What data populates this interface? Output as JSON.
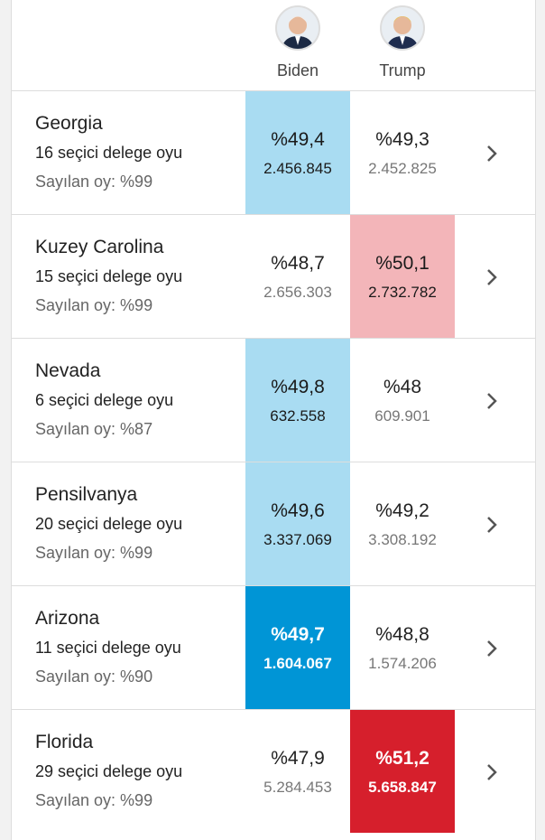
{
  "header": {
    "candidates": [
      "Biden",
      "Trump"
    ]
  },
  "rows": [
    {
      "state": "Georgia",
      "electors": "16 seçici delege oyu",
      "counted": "Sayılan oy: %99",
      "results": [
        {
          "pct": "%49,4",
          "votes": "2.456.845"
        },
        {
          "pct": "%49,3",
          "votes": "2.452.825"
        }
      ],
      "highlight": {
        "candidate": 0,
        "color": "#a9dcf2",
        "text_color": "#1a1a1a"
      }
    },
    {
      "state": "Kuzey Carolina",
      "electors": "15 seçici delege oyu",
      "counted": "Sayılan oy: %99",
      "results": [
        {
          "pct": "%48,7",
          "votes": "2.656.303"
        },
        {
          "pct": "%50,1",
          "votes": "2.732.782"
        }
      ],
      "highlight": {
        "candidate": 1,
        "color": "#f3b5b9",
        "text_color": "#1a1a1a"
      }
    },
    {
      "state": "Nevada",
      "electors": "6 seçici delege oyu",
      "counted": "Sayılan oy: %87",
      "results": [
        {
          "pct": "%49,8",
          "votes": "632.558"
        },
        {
          "pct": "%48",
          "votes": "609.901"
        }
      ],
      "highlight": {
        "candidate": 0,
        "color": "#a9dcf2",
        "text_color": "#1a1a1a"
      }
    },
    {
      "state": "Pensilvanya",
      "electors": "20 seçici delege oyu",
      "counted": "Sayılan oy: %99",
      "results": [
        {
          "pct": "%49,6",
          "votes": "3.337.069"
        },
        {
          "pct": "%49,2",
          "votes": "3.308.192"
        }
      ],
      "highlight": {
        "candidate": 0,
        "color": "#a9dcf2",
        "text_color": "#1a1a1a"
      }
    },
    {
      "state": "Arizona",
      "electors": "11 seçici delege oyu",
      "counted": "Sayılan oy: %90",
      "results": [
        {
          "pct": "%49,7",
          "votes": "1.604.067"
        },
        {
          "pct": "%48,8",
          "votes": "1.574.206"
        }
      ],
      "highlight": {
        "candidate": 0,
        "color": "#0095d6",
        "text_color": "#ffffff"
      }
    },
    {
      "state": "Florida",
      "electors": "29 seçici delege oyu",
      "counted": "Sayılan oy: %99",
      "results": [
        {
          "pct": "%47,9",
          "votes": "5.284.453"
        },
        {
          "pct": "%51,2",
          "votes": "5.658.847"
        }
      ],
      "highlight": {
        "candidate": 1,
        "color": "#d61f2c",
        "text_color": "#ffffff"
      }
    }
  ]
}
